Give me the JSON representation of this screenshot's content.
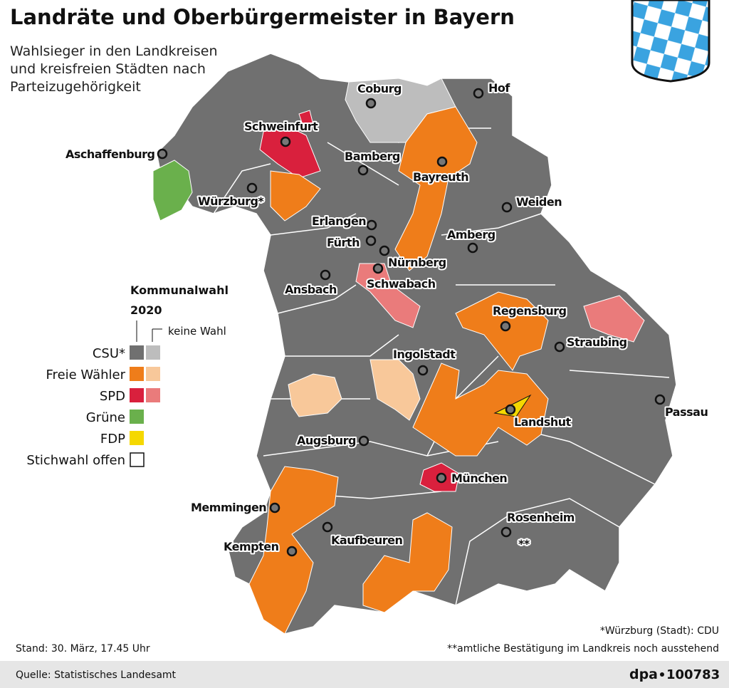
{
  "header": {
    "title": "Landräte und Oberbürgermeister in Bayern",
    "subtitle": [
      "Wahlsieger in den Landkreisen",
      "und kreisfreien Städten nach",
      "Parteizugehörigkeit"
    ]
  },
  "legend": {
    "title": [
      "Kommunalwahl",
      "2020"
    ],
    "no_election": "keine Wahl",
    "items": [
      "CSU*",
      "Freie Wähler",
      "SPD",
      "Grüne",
      "FDP",
      "Stichwahl offen"
    ]
  },
  "cities": [
    "Coburg",
    "Hof",
    "Schweinfurt",
    "Aschaffenburg",
    "Bamberg",
    "Bayreuth",
    "Würzburg*",
    "Weiden",
    "Erlangen",
    "Fürth",
    "Amberg",
    "Nürnberg",
    "Ansbach",
    "Schwabach",
    "Regensburg",
    "Straubing",
    "Ingolstadt",
    "Passau",
    "Landshut",
    "Augsburg",
    "München",
    "Memmingen",
    "Rosenheim",
    "Kaufbeuren",
    "Kempten",
    "**"
  ],
  "footnotes": [
    "*Würzburg (Stadt): CDU",
    "**amtliche Bestätigung im Landkreis noch ausstehend"
  ],
  "stand": "Stand: 30. März, 17.45 Uhr",
  "source": "Quelle: Statistisches Landesamt",
  "agency": "dpa",
  "id": "100783"
}
